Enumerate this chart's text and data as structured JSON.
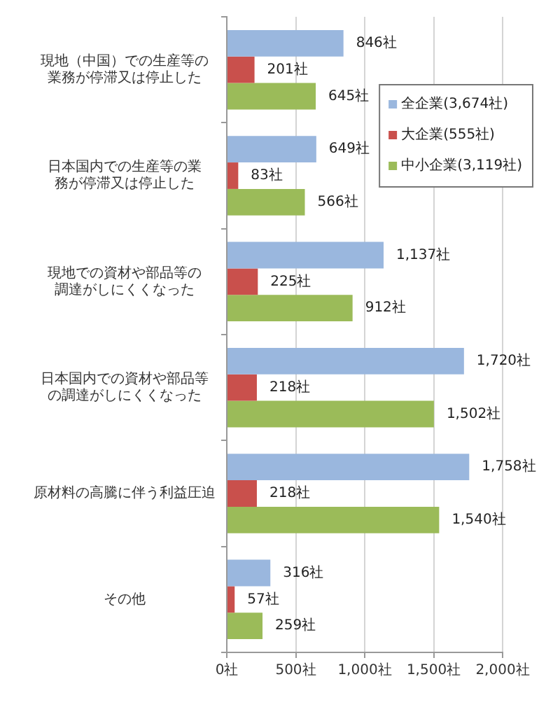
{
  "chart_data": {
    "type": "bar",
    "orientation": "horizontal",
    "categories": [
      "現地（中国）での生産等の業務が停滞又は停止した",
      "日本国内での生産等の業務が停滞又は停止した",
      "現地での資材や部品等の調達がしにくくなった",
      "日本国内での資材や部品等の調達がしにくくなった",
      "原材料の高騰に伴う利益圧迫",
      "その他"
    ],
    "series": [
      {
        "name": "全企業(3,674社)",
        "color": "#9ab7de",
        "values": [
          846,
          649,
          1137,
          1720,
          1758,
          316
        ],
        "value_labels": [
          "846社",
          "649社",
          "1,137社",
          "1,720社",
          "1,758社",
          "316社"
        ]
      },
      {
        "name": "大企業(555社)",
        "color": "#c9504c",
        "values": [
          201,
          83,
          225,
          218,
          218,
          57
        ],
        "value_labels": [
          "201社",
          "83社",
          "225社",
          "218社",
          "218社",
          "57社"
        ]
      },
      {
        "name": "中小企業(3,119社)",
        "color": "#9bbb59",
        "values": [
          645,
          566,
          912,
          1502,
          1540,
          259
        ],
        "value_labels": [
          "645社",
          "566社",
          "912社",
          "1,502社",
          "1,540社",
          "259社"
        ]
      }
    ],
    "xlim": [
      0,
      2000
    ],
    "xticks": [
      {
        "value": 0,
        "label": "0社"
      },
      {
        "value": 500,
        "label": "500社"
      },
      {
        "value": 1000,
        "label": "1,000社"
      },
      {
        "value": 1500,
        "label": "1,500社"
      },
      {
        "value": 2000,
        "label": "2,000社"
      }
    ],
    "grid": "x",
    "legend": "top right"
  }
}
